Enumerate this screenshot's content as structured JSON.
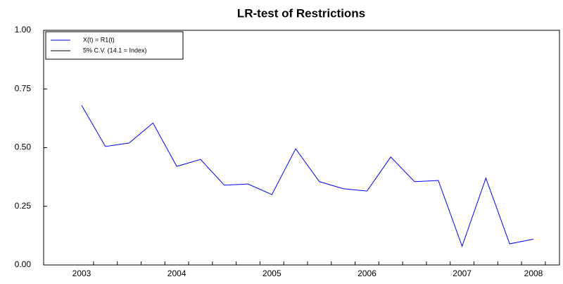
{
  "chart_data": {
    "type": "line",
    "title": "LR-test of Restrictions",
    "categories": [
      "2003",
      null,
      null,
      null,
      "2004",
      null,
      null,
      null,
      "2005",
      null,
      null,
      null,
      "2006",
      null,
      null,
      null,
      "2007",
      null,
      null,
      "2008"
    ],
    "series": [
      {
        "name": "X(t) = R1(t)",
        "color": "#0000ff",
        "values": [
          0.68,
          0.505,
          0.52,
          0.605,
          0.42,
          0.45,
          0.34,
          0.345,
          0.3,
          0.495,
          0.355,
          0.325,
          0.315,
          0.46,
          0.355,
          0.36,
          0.08,
          0.37,
          0.09,
          0.11
        ]
      }
    ],
    "legend": [
      {
        "name": "X(t) = R1(t)",
        "color": "#0000ff"
      },
      {
        "name": "5% C.V. (14.1 = Index)",
        "color": "#000000"
      }
    ],
    "ylim": [
      0,
      1
    ],
    "yticks": [
      {
        "value": 0,
        "label": "0.00"
      },
      {
        "value": 0.25,
        "label": "0.25"
      },
      {
        "value": 0.5,
        "label": "0.50"
      },
      {
        "value": 0.75,
        "label": "0.75"
      },
      {
        "value": 1,
        "label": "1.00"
      }
    ]
  }
}
